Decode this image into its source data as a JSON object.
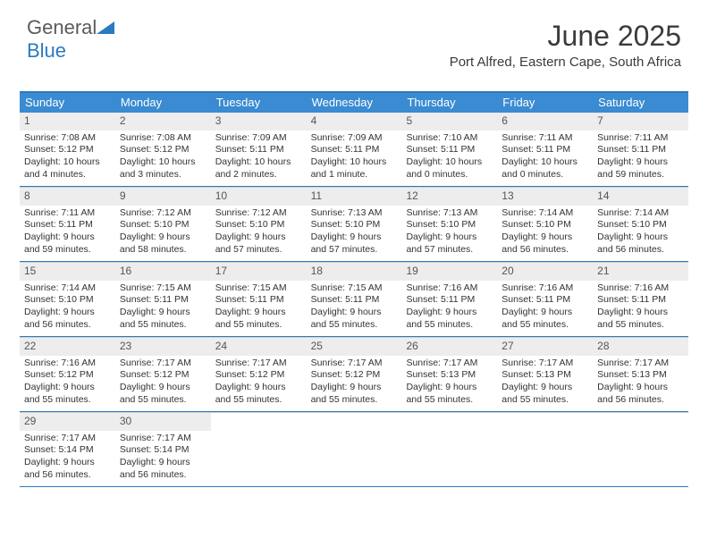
{
  "logo": {
    "text1": "General",
    "text2": "Blue"
  },
  "title": "June 2025",
  "subtitle": "Port Alfred, Eastern Cape, South Africa",
  "colors": {
    "header_bg": "#3a8bd1",
    "header_border": "#2b7ac0",
    "daynum_bg": "#ededed",
    "text": "#333333",
    "logo_gray": "#5a5a5a",
    "logo_blue": "#2b7ac0"
  },
  "weekday_labels": [
    "Sunday",
    "Monday",
    "Tuesday",
    "Wednesday",
    "Thursday",
    "Friday",
    "Saturday"
  ],
  "weeks": [
    [
      {
        "n": "1",
        "sr": "Sunrise: 7:08 AM",
        "ss": "Sunset: 5:12 PM",
        "dl": "Daylight: 10 hours and 4 minutes."
      },
      {
        "n": "2",
        "sr": "Sunrise: 7:08 AM",
        "ss": "Sunset: 5:12 PM",
        "dl": "Daylight: 10 hours and 3 minutes."
      },
      {
        "n": "3",
        "sr": "Sunrise: 7:09 AM",
        "ss": "Sunset: 5:11 PM",
        "dl": "Daylight: 10 hours and 2 minutes."
      },
      {
        "n": "4",
        "sr": "Sunrise: 7:09 AM",
        "ss": "Sunset: 5:11 PM",
        "dl": "Daylight: 10 hours and 1 minute."
      },
      {
        "n": "5",
        "sr": "Sunrise: 7:10 AM",
        "ss": "Sunset: 5:11 PM",
        "dl": "Daylight: 10 hours and 0 minutes."
      },
      {
        "n": "6",
        "sr": "Sunrise: 7:11 AM",
        "ss": "Sunset: 5:11 PM",
        "dl": "Daylight: 10 hours and 0 minutes."
      },
      {
        "n": "7",
        "sr": "Sunrise: 7:11 AM",
        "ss": "Sunset: 5:11 PM",
        "dl": "Daylight: 9 hours and 59 minutes."
      }
    ],
    [
      {
        "n": "8",
        "sr": "Sunrise: 7:11 AM",
        "ss": "Sunset: 5:11 PM",
        "dl": "Daylight: 9 hours and 59 minutes."
      },
      {
        "n": "9",
        "sr": "Sunrise: 7:12 AM",
        "ss": "Sunset: 5:10 PM",
        "dl": "Daylight: 9 hours and 58 minutes."
      },
      {
        "n": "10",
        "sr": "Sunrise: 7:12 AM",
        "ss": "Sunset: 5:10 PM",
        "dl": "Daylight: 9 hours and 57 minutes."
      },
      {
        "n": "11",
        "sr": "Sunrise: 7:13 AM",
        "ss": "Sunset: 5:10 PM",
        "dl": "Daylight: 9 hours and 57 minutes."
      },
      {
        "n": "12",
        "sr": "Sunrise: 7:13 AM",
        "ss": "Sunset: 5:10 PM",
        "dl": "Daylight: 9 hours and 57 minutes."
      },
      {
        "n": "13",
        "sr": "Sunrise: 7:14 AM",
        "ss": "Sunset: 5:10 PM",
        "dl": "Daylight: 9 hours and 56 minutes."
      },
      {
        "n": "14",
        "sr": "Sunrise: 7:14 AM",
        "ss": "Sunset: 5:10 PM",
        "dl": "Daylight: 9 hours and 56 minutes."
      }
    ],
    [
      {
        "n": "15",
        "sr": "Sunrise: 7:14 AM",
        "ss": "Sunset: 5:10 PM",
        "dl": "Daylight: 9 hours and 56 minutes."
      },
      {
        "n": "16",
        "sr": "Sunrise: 7:15 AM",
        "ss": "Sunset: 5:11 PM",
        "dl": "Daylight: 9 hours and 55 minutes."
      },
      {
        "n": "17",
        "sr": "Sunrise: 7:15 AM",
        "ss": "Sunset: 5:11 PM",
        "dl": "Daylight: 9 hours and 55 minutes."
      },
      {
        "n": "18",
        "sr": "Sunrise: 7:15 AM",
        "ss": "Sunset: 5:11 PM",
        "dl": "Daylight: 9 hours and 55 minutes."
      },
      {
        "n": "19",
        "sr": "Sunrise: 7:16 AM",
        "ss": "Sunset: 5:11 PM",
        "dl": "Daylight: 9 hours and 55 minutes."
      },
      {
        "n": "20",
        "sr": "Sunrise: 7:16 AM",
        "ss": "Sunset: 5:11 PM",
        "dl": "Daylight: 9 hours and 55 minutes."
      },
      {
        "n": "21",
        "sr": "Sunrise: 7:16 AM",
        "ss": "Sunset: 5:11 PM",
        "dl": "Daylight: 9 hours and 55 minutes."
      }
    ],
    [
      {
        "n": "22",
        "sr": "Sunrise: 7:16 AM",
        "ss": "Sunset: 5:12 PM",
        "dl": "Daylight: 9 hours and 55 minutes."
      },
      {
        "n": "23",
        "sr": "Sunrise: 7:17 AM",
        "ss": "Sunset: 5:12 PM",
        "dl": "Daylight: 9 hours and 55 minutes."
      },
      {
        "n": "24",
        "sr": "Sunrise: 7:17 AM",
        "ss": "Sunset: 5:12 PM",
        "dl": "Daylight: 9 hours and 55 minutes."
      },
      {
        "n": "25",
        "sr": "Sunrise: 7:17 AM",
        "ss": "Sunset: 5:12 PM",
        "dl": "Daylight: 9 hours and 55 minutes."
      },
      {
        "n": "26",
        "sr": "Sunrise: 7:17 AM",
        "ss": "Sunset: 5:13 PM",
        "dl": "Daylight: 9 hours and 55 minutes."
      },
      {
        "n": "27",
        "sr": "Sunrise: 7:17 AM",
        "ss": "Sunset: 5:13 PM",
        "dl": "Daylight: 9 hours and 55 minutes."
      },
      {
        "n": "28",
        "sr": "Sunrise: 7:17 AM",
        "ss": "Sunset: 5:13 PM",
        "dl": "Daylight: 9 hours and 56 minutes."
      }
    ],
    [
      {
        "n": "29",
        "sr": "Sunrise: 7:17 AM",
        "ss": "Sunset: 5:14 PM",
        "dl": "Daylight: 9 hours and 56 minutes."
      },
      {
        "n": "30",
        "sr": "Sunrise: 7:17 AM",
        "ss": "Sunset: 5:14 PM",
        "dl": "Daylight: 9 hours and 56 minutes."
      },
      {
        "empty": true
      },
      {
        "empty": true
      },
      {
        "empty": true
      },
      {
        "empty": true
      },
      {
        "empty": true
      }
    ]
  ]
}
